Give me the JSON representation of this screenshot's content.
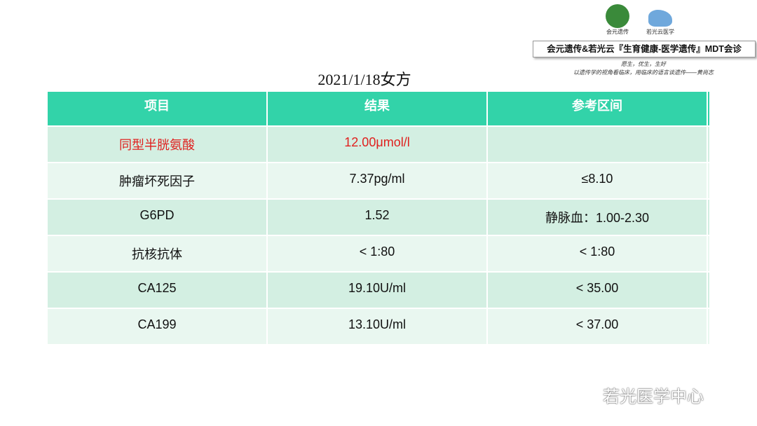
{
  "header": {
    "logo_left": "会元遗传",
    "logo_right": "若光云医学",
    "banner": "会元遗传&若光云『生育健康-医学遗传』MDT会诊",
    "slogan": [
      "愿生，优生，生好",
      "以遗传学的视角看临床，用临床的语言谈遗传——黄尚志"
    ]
  },
  "title": "2021/1/18女方",
  "table": {
    "columns": [
      "项目",
      "结果",
      "参考区间"
    ],
    "rows": [
      [
        "同型半胱氨酸",
        "12.00μmol/l",
        null
      ],
      [
        "肿瘤坏死因子",
        "7.37pg/ml",
        "≤8.10"
      ],
      [
        "G6PD",
        "1.52",
        "静脉血：1.00-2.30"
      ],
      [
        "抗核抗体",
        "< 1:80",
        "< 1:80"
      ],
      [
        "CA125",
        "19.10U/ml",
        "< 35.00"
      ],
      [
        "CA199",
        "13.10U/ml",
        "< 37.00"
      ]
    ]
  },
  "watermark": "若光医学中心"
}
